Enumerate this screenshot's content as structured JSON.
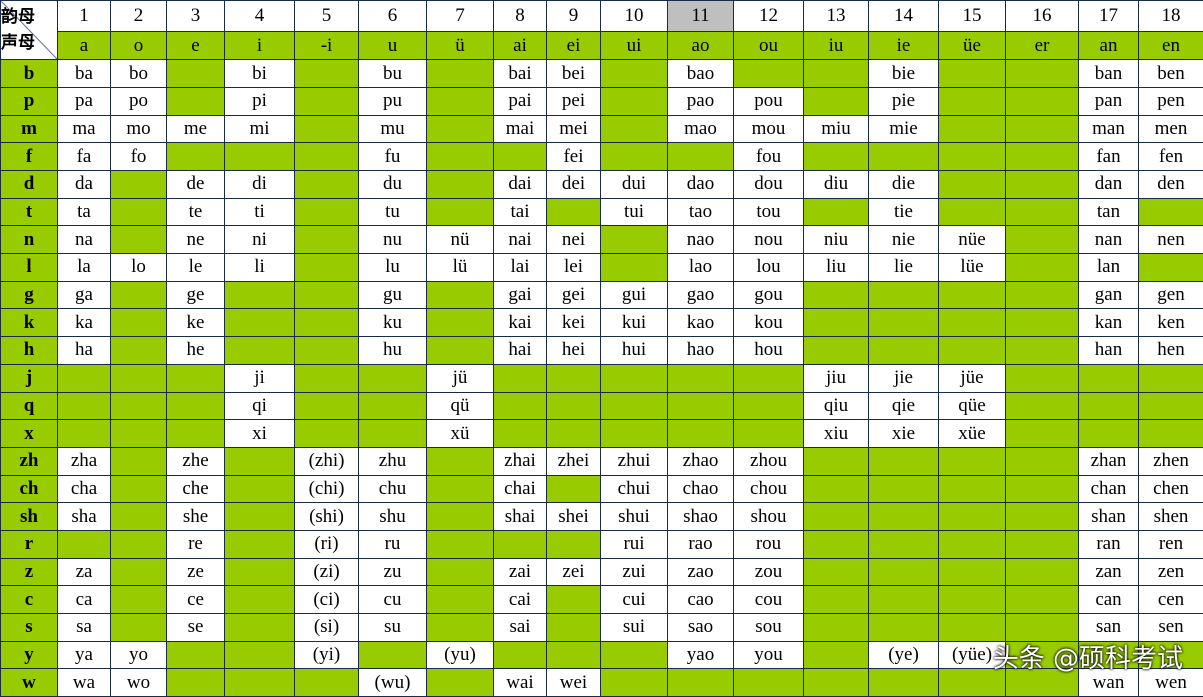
{
  "table": {
    "corner": [
      "韵母",
      "声母"
    ],
    "numbers": [
      "1",
      "2",
      "3",
      "4",
      "5",
      "6",
      "7",
      "8",
      "9",
      "10",
      "11",
      "12",
      "13",
      "14",
      "15",
      "16",
      "17",
      "18"
    ],
    "finals": [
      "a",
      "o",
      "e",
      "i",
      "-i",
      "u",
      "ü",
      "ai",
      "ei",
      "ui",
      "ao",
      "ou",
      "iu",
      "ie",
      "üe",
      "er",
      "an",
      "en"
    ],
    "rows": [
      {
        "initial": "b",
        "cells": [
          "ba",
          "bo",
          null,
          "bi",
          null,
          "bu",
          null,
          "bai",
          "bei",
          null,
          "bao",
          null,
          null,
          "bie",
          null,
          null,
          "ban",
          "ben"
        ]
      },
      {
        "initial": "p",
        "cells": [
          "pa",
          "po",
          null,
          "pi",
          null,
          "pu",
          null,
          "pai",
          "pei",
          null,
          "pao",
          "pou",
          null,
          "pie",
          null,
          null,
          "pan",
          "pen"
        ]
      },
      {
        "initial": "m",
        "cells": [
          "ma",
          "mo",
          "me",
          "mi",
          null,
          "mu",
          null,
          "mai",
          "mei",
          null,
          "mao",
          "mou",
          "miu",
          "mie",
          null,
          null,
          "man",
          "men"
        ]
      },
      {
        "initial": "f",
        "cells": [
          "fa",
          "fo",
          null,
          null,
          null,
          "fu",
          null,
          null,
          "fei",
          null,
          null,
          "fou",
          null,
          null,
          null,
          null,
          "fan",
          "fen"
        ]
      },
      {
        "initial": "d",
        "cells": [
          "da",
          null,
          "de",
          "di",
          null,
          "du",
          null,
          "dai",
          "dei",
          "dui",
          "dao",
          "dou",
          "diu",
          "die",
          null,
          null,
          "dan",
          "den"
        ]
      },
      {
        "initial": "t",
        "cells": [
          "ta",
          null,
          "te",
          "ti",
          null,
          "tu",
          null,
          "tai",
          null,
          "tui",
          "tao",
          "tou",
          null,
          "tie",
          null,
          null,
          "tan",
          null
        ]
      },
      {
        "initial": "n",
        "cells": [
          "na",
          null,
          "ne",
          "ni",
          null,
          "nu",
          "nü",
          "nai",
          "nei",
          null,
          "nao",
          "nou",
          "niu",
          "nie",
          "nüe",
          null,
          "nan",
          "nen"
        ]
      },
      {
        "initial": "l",
        "cells": [
          "la",
          "lo",
          "le",
          "li",
          null,
          "lu",
          "lü",
          "lai",
          "lei",
          null,
          "lao",
          "lou",
          "liu",
          "lie",
          "lüe",
          null,
          "lan",
          null
        ]
      },
      {
        "initial": "g",
        "cells": [
          "ga",
          null,
          "ge",
          null,
          null,
          "gu",
          null,
          "gai",
          "gei",
          "gui",
          "gao",
          "gou",
          null,
          null,
          null,
          null,
          "gan",
          "gen"
        ]
      },
      {
        "initial": "k",
        "cells": [
          "ka",
          null,
          "ke",
          null,
          null,
          "ku",
          null,
          "kai",
          "kei",
          "kui",
          "kao",
          "kou",
          null,
          null,
          null,
          null,
          "kan",
          "ken"
        ]
      },
      {
        "initial": "h",
        "cells": [
          "ha",
          null,
          "he",
          null,
          null,
          "hu",
          null,
          "hai",
          "hei",
          "hui",
          "hao",
          "hou",
          null,
          null,
          null,
          null,
          "han",
          "hen"
        ]
      },
      {
        "initial": "j",
        "cells": [
          null,
          null,
          null,
          "ji",
          null,
          null,
          "jü",
          null,
          null,
          null,
          null,
          null,
          "jiu",
          "jie",
          "jüe",
          null,
          null,
          null
        ]
      },
      {
        "initial": "q",
        "cells": [
          null,
          null,
          null,
          "qi",
          null,
          null,
          "qü",
          null,
          null,
          null,
          null,
          null,
          "qiu",
          "qie",
          "qüe",
          null,
          null,
          null
        ]
      },
      {
        "initial": "x",
        "cells": [
          null,
          null,
          null,
          "xi",
          null,
          null,
          "xü",
          null,
          null,
          null,
          null,
          null,
          "xiu",
          "xie",
          "xüe",
          null,
          null,
          null
        ]
      },
      {
        "initial": "zh",
        "cells": [
          "zha",
          null,
          "zhe",
          null,
          "(zhi)",
          "zhu",
          null,
          "zhai",
          "zhei",
          "zhui",
          "zhao",
          "zhou",
          null,
          null,
          null,
          null,
          "zhan",
          "zhen"
        ]
      },
      {
        "initial": "ch",
        "cells": [
          "cha",
          null,
          "che",
          null,
          "(chi)",
          "chu",
          null,
          "chai",
          null,
          "chui",
          "chao",
          "chou",
          null,
          null,
          null,
          null,
          "chan",
          "chen"
        ]
      },
      {
        "initial": "sh",
        "cells": [
          "sha",
          null,
          "she",
          null,
          "(shi)",
          "shu",
          null,
          "shai",
          "shei",
          "shui",
          "shao",
          "shou",
          null,
          null,
          null,
          null,
          "shan",
          "shen"
        ]
      },
      {
        "initial": "r",
        "cells": [
          null,
          null,
          "re",
          null,
          "(ri)",
          "ru",
          null,
          null,
          null,
          "rui",
          "rao",
          "rou",
          null,
          null,
          null,
          null,
          "ran",
          "ren"
        ]
      },
      {
        "initial": "z",
        "cells": [
          "za",
          null,
          "ze",
          null,
          "(zi)",
          "zu",
          null,
          "zai",
          "zei",
          "zui",
          "zao",
          "zou",
          null,
          null,
          null,
          null,
          "zan",
          "zen"
        ]
      },
      {
        "initial": "c",
        "cells": [
          "ca",
          null,
          "ce",
          null,
          "(ci)",
          "cu",
          null,
          "cai",
          null,
          "cui",
          "cao",
          "cou",
          null,
          null,
          null,
          null,
          "can",
          "cen"
        ]
      },
      {
        "initial": "s",
        "cells": [
          "sa",
          null,
          "se",
          null,
          "(si)",
          "su",
          null,
          "sai",
          null,
          "sui",
          "sao",
          "sou",
          null,
          null,
          null,
          null,
          "san",
          "sen"
        ]
      },
      {
        "initial": "y",
        "cells": [
          "ya",
          "yo",
          null,
          null,
          "(yi)",
          null,
          "(yu)",
          null,
          null,
          null,
          "yao",
          "you",
          null,
          "(ye)",
          "(yüe)",
          null,
          null,
          null
        ]
      },
      {
        "initial": "w",
        "cells": [
          "wa",
          "wo",
          null,
          null,
          null,
          "(wu)",
          null,
          "wai",
          "wei",
          null,
          null,
          null,
          null,
          null,
          null,
          null,
          "wan",
          "wen"
        ]
      }
    ]
  },
  "watermark": "头条 @硕科考试"
}
